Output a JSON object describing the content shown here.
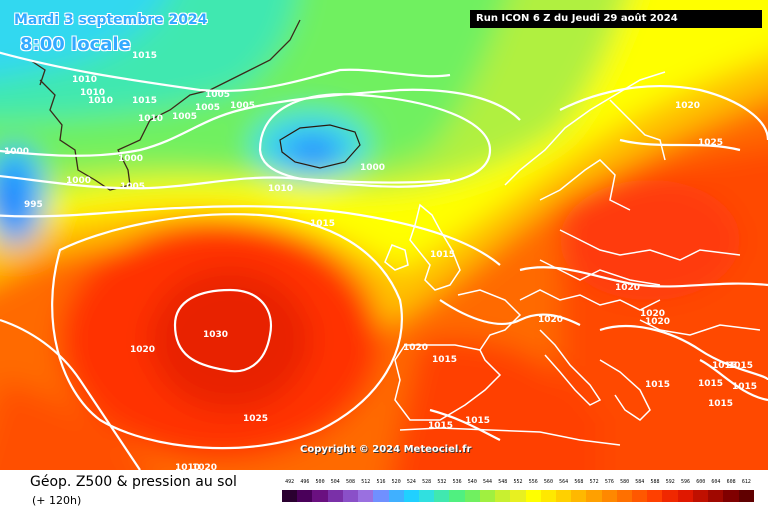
{
  "header": {
    "date_line": "Mardi 3 septembre 2024",
    "time_line": "8:00 locale",
    "run_line": "Run ICON 6 Z du Jeudi 29 août 2024"
  },
  "copyright": "Copyright © 2024 Meteociel.fr",
  "footer": {
    "title": "Géop. Z500 & pression au sol",
    "subtitle": "(+ 120h)"
  },
  "legend": {
    "values": [
      "492",
      "496",
      "500",
      "504",
      "508",
      "512",
      "516",
      "520",
      "524",
      "528",
      "532",
      "536",
      "540",
      "544",
      "548",
      "552",
      "556",
      "560",
      "564",
      "568",
      "572",
      "576",
      "580",
      "584",
      "588",
      "592",
      "596",
      "600",
      "604",
      "608",
      "612"
    ],
    "colors": [
      "#2a0030",
      "#4a005a",
      "#6a1080",
      "#7a30a8",
      "#8a50c8",
      "#9a70e0",
      "#7090ff",
      "#40b0ff",
      "#20d0ff",
      "#30e0e0",
      "#40e8b0",
      "#50f080",
      "#70f060",
      "#a0f040",
      "#c8f030",
      "#e8f020",
      "#ffff00",
      "#ffe800",
      "#ffd000",
      "#ffb800",
      "#ffa000",
      "#ff8800",
      "#ff7000",
      "#ff5800",
      "#ff4000",
      "#f02800",
      "#e01800",
      "#c01000",
      "#a00800",
      "#800000",
      "#600000"
    ]
  },
  "isobars": [
    {
      "text": "1015",
      "id": "l1"
    },
    {
      "text": "1010",
      "id": "l2"
    },
    {
      "text": "1010",
      "id": "l3"
    },
    {
      "text": "1010",
      "id": "l4"
    },
    {
      "text": "1015",
      "id": "l5"
    },
    {
      "text": "1010",
      "id": "l6"
    },
    {
      "text": "1005",
      "id": "l7"
    },
    {
      "text": "1005",
      "id": "l8"
    },
    {
      "text": "1005",
      "id": "l9"
    },
    {
      "text": "1005",
      "id": "l10"
    },
    {
      "text": "1000",
      "id": "l11"
    },
    {
      "text": "1000",
      "id": "l12"
    },
    {
      "text": "1000",
      "id": "l13"
    },
    {
      "text": "1005",
      "id": "l14"
    },
    {
      "text": "995",
      "id": "l15"
    },
    {
      "text": "1000",
      "id": "l16"
    },
    {
      "text": "1010",
      "id": "l17"
    },
    {
      "text": "1015",
      "id": "l18"
    },
    {
      "text": "1015",
      "id": "l19"
    },
    {
      "text": "1020",
      "id": "l20"
    },
    {
      "text": "1025",
      "id": "l21"
    },
    {
      "text": "1020",
      "id": "l22"
    },
    {
      "text": "1020",
      "id": "l23"
    },
    {
      "text": "1020",
      "id": "l24"
    },
    {
      "text": "1020",
      "id": "l25"
    },
    {
      "text": "1030",
      "id": "l26"
    },
    {
      "text": "1020",
      "id": "l27"
    },
    {
      "text": "1020",
      "id": "l28"
    },
    {
      "text": "1015",
      "id": "l29"
    },
    {
      "text": "1015",
      "id": "l30"
    },
    {
      "text": "1015",
      "id": "l31"
    },
    {
      "text": "1015",
      "id": "l32"
    },
    {
      "text": "1015",
      "id": "l33"
    },
    {
      "text": "1015",
      "id": "l34"
    },
    {
      "text": "1015",
      "id": "l35"
    },
    {
      "text": "1025",
      "id": "l36"
    },
    {
      "text": "1010",
      "id": "l37"
    },
    {
      "text": "1020",
      "id": "l38"
    },
    {
      "text": "1015",
      "id": "l39"
    },
    {
      "text": "1015",
      "id": "l40"
    }
  ]
}
